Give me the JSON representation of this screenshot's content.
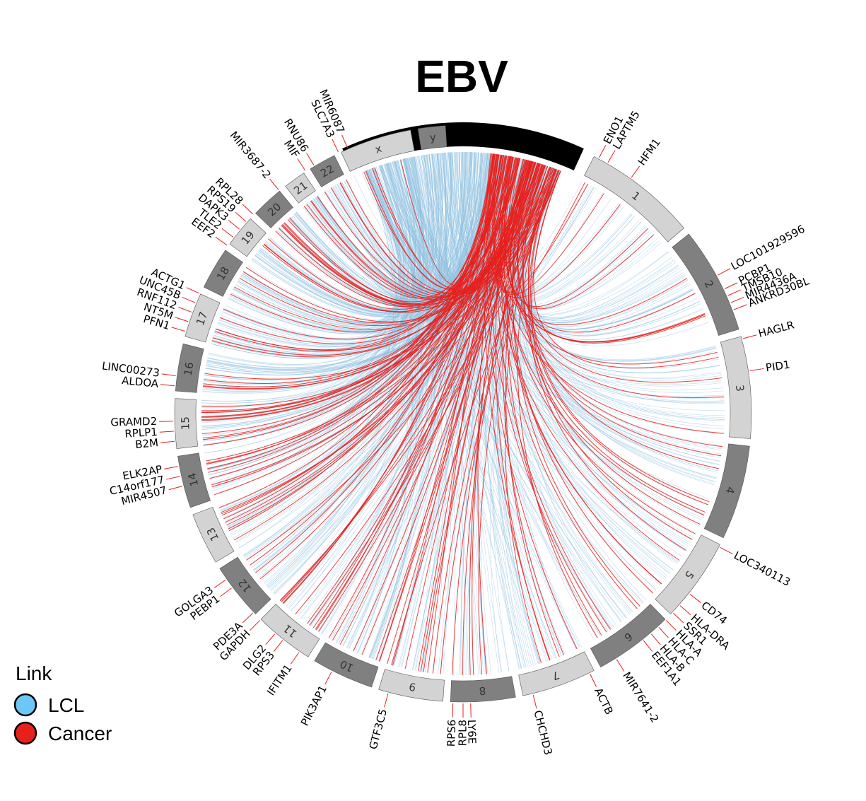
{
  "title": "EBV",
  "colors": {
    "lcl": "#8dbfe0",
    "cancer": "#e8201c",
    "ebv_segment": "#000000",
    "chrom_light": "#d3d3d3",
    "chrom_dark": "#808080",
    "leader": "#e8201c"
  },
  "legend": {
    "title": "Link",
    "items": [
      {
        "label": "LCL",
        "color": "#6cc7f5"
      },
      {
        "label": "Cancer",
        "color": "#e8201c"
      }
    ]
  },
  "chromosomes": [
    {
      "name": "1",
      "shade": "light"
    },
    {
      "name": "2",
      "shade": "dark"
    },
    {
      "name": "3",
      "shade": "light"
    },
    {
      "name": "4",
      "shade": "dark"
    },
    {
      "name": "5",
      "shade": "light"
    },
    {
      "name": "6",
      "shade": "dark"
    },
    {
      "name": "7",
      "shade": "light"
    },
    {
      "name": "8",
      "shade": "dark"
    },
    {
      "name": "9",
      "shade": "light"
    },
    {
      "name": "10",
      "shade": "dark"
    },
    {
      "name": "11",
      "shade": "light"
    },
    {
      "name": "12",
      "shade": "dark"
    },
    {
      "name": "13",
      "shade": "light"
    },
    {
      "name": "14",
      "shade": "dark"
    },
    {
      "name": "15",
      "shade": "light"
    },
    {
      "name": "16",
      "shade": "dark"
    },
    {
      "name": "17",
      "shade": "light"
    },
    {
      "name": "18",
      "shade": "dark"
    },
    {
      "name": "19",
      "shade": "light"
    },
    {
      "name": "20",
      "shade": "dark"
    },
    {
      "name": "21",
      "shade": "light"
    },
    {
      "name": "22",
      "shade": "dark"
    },
    {
      "name": "x",
      "shade": "light"
    },
    {
      "name": "y",
      "shade": "dark"
    }
  ],
  "genes": [
    {
      "label": "ENO1",
      "chrom": "1"
    },
    {
      "label": "LAPTM5",
      "chrom": "1"
    },
    {
      "label": "HFM1",
      "chrom": "1"
    },
    {
      "label": "LOC101929596",
      "chrom": "2"
    },
    {
      "label": "PCBP1",
      "chrom": "2"
    },
    {
      "label": "TMSB10",
      "chrom": "2"
    },
    {
      "label": "MIR4436A",
      "chrom": "2"
    },
    {
      "label": "ANKRD30BL",
      "chrom": "2"
    },
    {
      "label": "HAGLR",
      "chrom": "2"
    },
    {
      "label": "PID1",
      "chrom": "2"
    },
    {
      "label": "LOC340113",
      "chrom": "5"
    },
    {
      "label": "CD74",
      "chrom": "5"
    },
    {
      "label": "HLA-DRA",
      "chrom": "6"
    },
    {
      "label": "SSR1",
      "chrom": "6"
    },
    {
      "label": "HLA-A",
      "chrom": "6"
    },
    {
      "label": "HLA-C",
      "chrom": "6"
    },
    {
      "label": "HLA-B",
      "chrom": "6"
    },
    {
      "label": "EEF1A1",
      "chrom": "6"
    },
    {
      "label": "MIR7641-2",
      "chrom": "6"
    },
    {
      "label": "ACTB",
      "chrom": "7"
    },
    {
      "label": "CHCHD3",
      "chrom": "7"
    },
    {
      "label": "LY6E",
      "chrom": "8"
    },
    {
      "label": "RPL8",
      "chrom": "8"
    },
    {
      "label": "RPS6",
      "chrom": "9"
    },
    {
      "label": "GTF3C5",
      "chrom": "9"
    },
    {
      "label": "PIK3AP1",
      "chrom": "10"
    },
    {
      "label": "IFITM1",
      "chrom": "11"
    },
    {
      "label": "RPS3",
      "chrom": "11"
    },
    {
      "label": "DLG2",
      "chrom": "11"
    },
    {
      "label": "GAPDH",
      "chrom": "12"
    },
    {
      "label": "PDE3A",
      "chrom": "12"
    },
    {
      "label": "PEBP1",
      "chrom": "12"
    },
    {
      "label": "GOLGA3",
      "chrom": "12"
    },
    {
      "label": "MIR4507",
      "chrom": "14"
    },
    {
      "label": "C14orf177",
      "chrom": "14"
    },
    {
      "label": "ELK2AP",
      "chrom": "14"
    },
    {
      "label": "B2M",
      "chrom": "15"
    },
    {
      "label": "RPLP1",
      "chrom": "15"
    },
    {
      "label": "GRAMD2",
      "chrom": "15"
    },
    {
      "label": "ALDOA",
      "chrom": "16"
    },
    {
      "label": "LINC00273",
      "chrom": "16"
    },
    {
      "label": "PFN1",
      "chrom": "17"
    },
    {
      "label": "NT5M",
      "chrom": "17"
    },
    {
      "label": "RNF112",
      "chrom": "17"
    },
    {
      "label": "UNC45B",
      "chrom": "17"
    },
    {
      "label": "ACTG1",
      "chrom": "17"
    },
    {
      "label": "EEF2",
      "chrom": "19"
    },
    {
      "label": "TLE2",
      "chrom": "19"
    },
    {
      "label": "DAPK3",
      "chrom": "19"
    },
    {
      "label": "RPS19",
      "chrom": "19"
    },
    {
      "label": "RPL28",
      "chrom": "19"
    },
    {
      "label": "MIR3687-2",
      "chrom": "21"
    },
    {
      "label": "MIF",
      "chrom": "22"
    },
    {
      "label": "RNU86",
      "chrom": "22"
    },
    {
      "label": "SLC7A3",
      "chrom": "x"
    },
    {
      "label": "MIR6087",
      "chrom": "x"
    }
  ]
}
